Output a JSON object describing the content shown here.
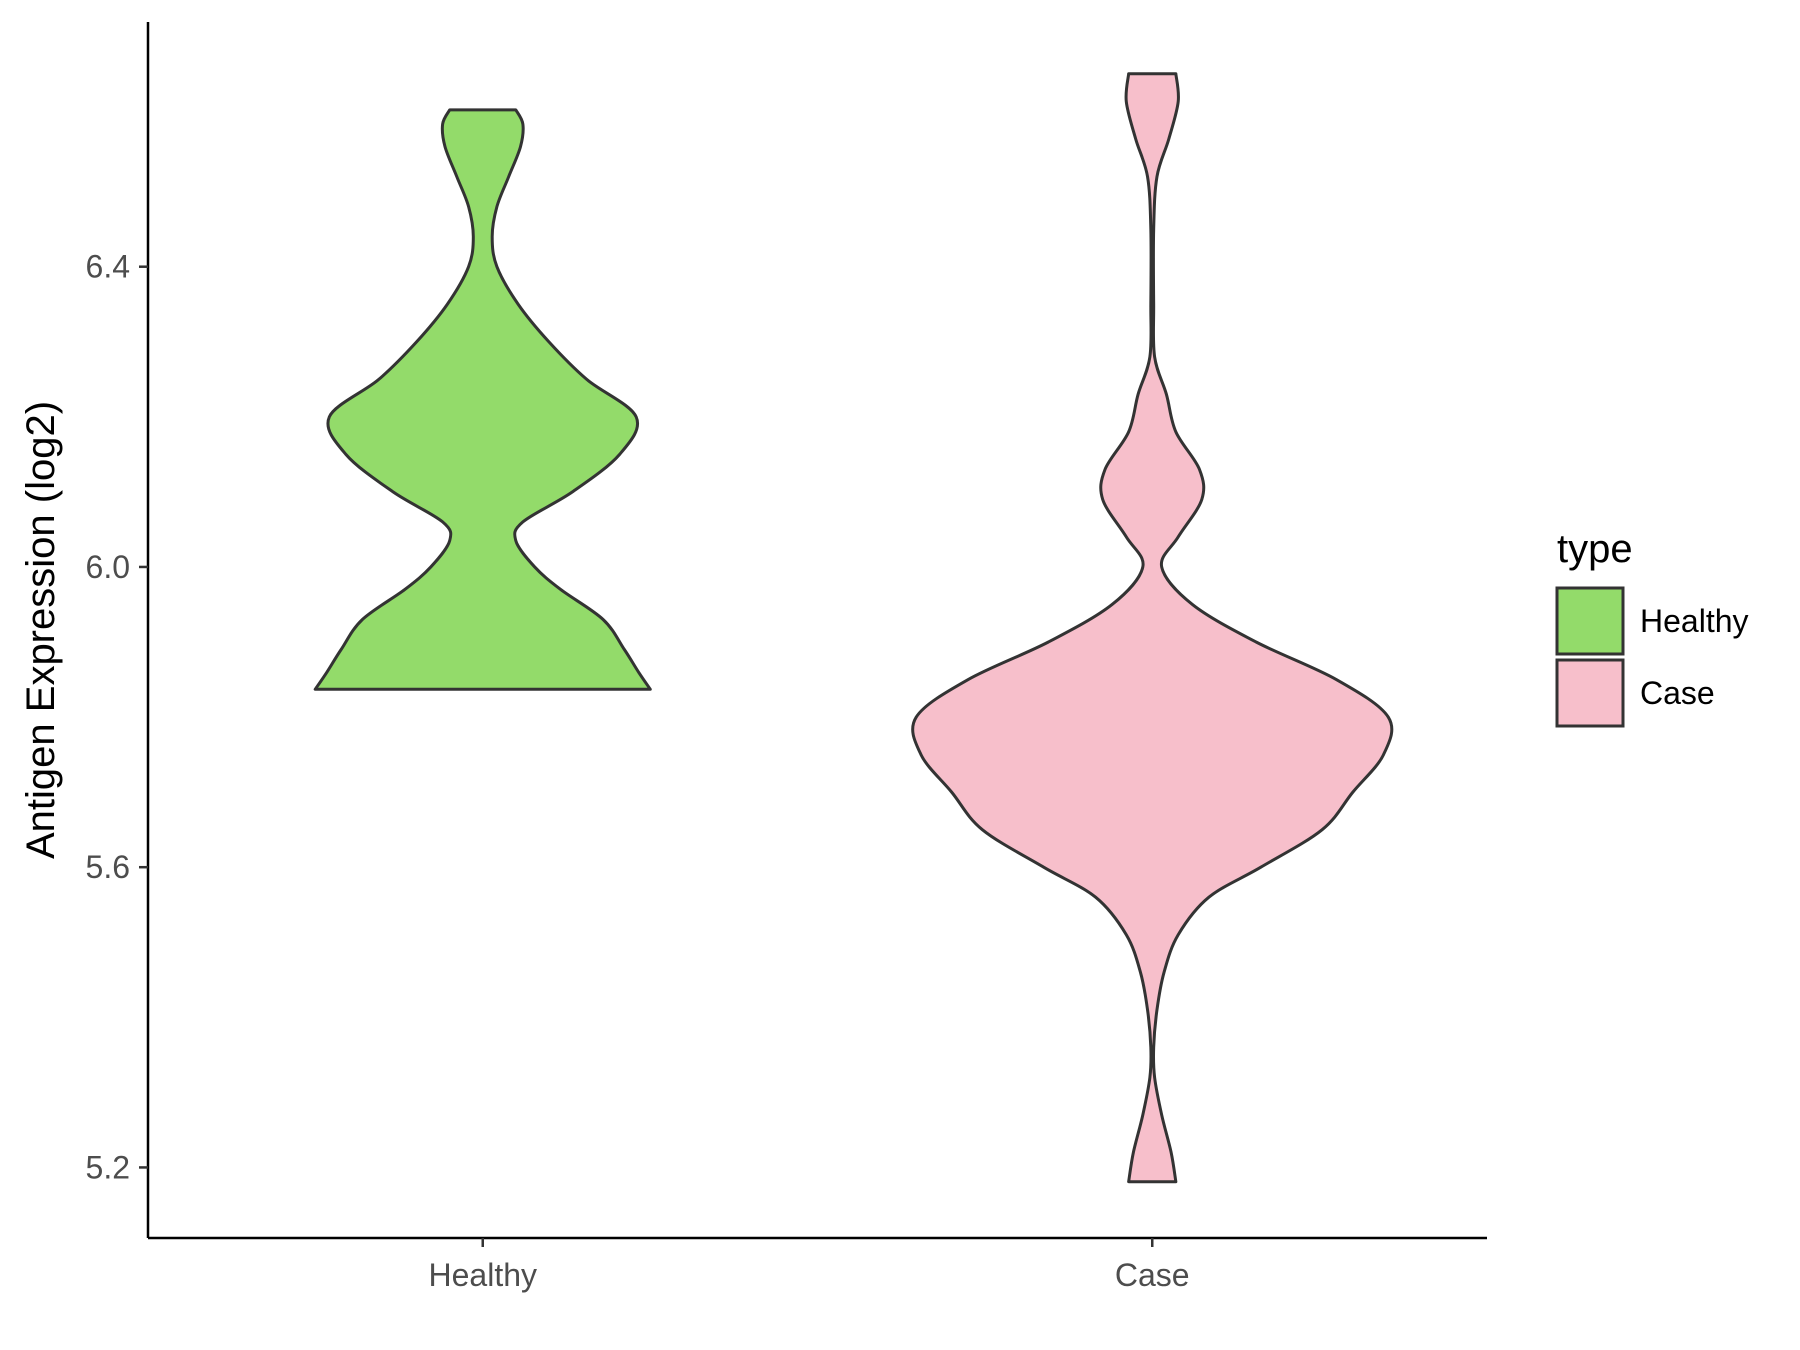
{
  "chart_data": {
    "type": "violin",
    "xlabel": "",
    "ylabel": "Antigen Expression (log2)",
    "ylim": [
      5.106,
      6.726
    ],
    "yticks": [
      "5.2",
      "5.6",
      "6.0",
      "6.4"
    ],
    "categories": [
      "Healthy",
      "Case"
    ],
    "legend": {
      "title": "type",
      "position": "right",
      "items": [
        "Healthy",
        "Case"
      ]
    },
    "series": [
      {
        "name": "Healthy",
        "color": "#93DB6A",
        "min": 5.837,
        "max": 6.609,
        "density": [
          [
            5.837,
            0.71
          ],
          [
            5.86,
            0.66
          ],
          [
            5.89,
            0.6
          ],
          [
            5.93,
            0.51
          ],
          [
            5.97,
            0.33
          ],
          [
            6.0,
            0.22
          ],
          [
            6.035,
            0.14
          ],
          [
            6.06,
            0.17
          ],
          [
            6.1,
            0.38
          ],
          [
            6.15,
            0.58
          ],
          [
            6.2,
            0.65
          ],
          [
            6.25,
            0.44
          ],
          [
            6.3,
            0.28
          ],
          [
            6.35,
            0.15
          ],
          [
            6.4,
            0.06
          ],
          [
            6.44,
            0.04
          ],
          [
            6.48,
            0.06
          ],
          [
            6.52,
            0.11
          ],
          [
            6.56,
            0.16
          ],
          [
            6.59,
            0.17
          ],
          [
            6.609,
            0.14
          ]
        ]
      },
      {
        "name": "Case",
        "color": "#F7BFCB",
        "min": 5.181,
        "max": 6.657,
        "density": [
          [
            5.181,
            0.1
          ],
          [
            5.22,
            0.08
          ],
          [
            5.27,
            0.04
          ],
          [
            5.32,
            0.01
          ],
          [
            5.36,
            0.006
          ],
          [
            5.41,
            0.02
          ],
          [
            5.46,
            0.05
          ],
          [
            5.51,
            0.11
          ],
          [
            5.56,
            0.24
          ],
          [
            5.6,
            0.46
          ],
          [
            5.65,
            0.72
          ],
          [
            5.7,
            0.85
          ],
          [
            5.75,
            0.98
          ],
          [
            5.8,
            1.0
          ],
          [
            5.85,
            0.78
          ],
          [
            5.9,
            0.44
          ],
          [
            5.95,
            0.17
          ],
          [
            6.0,
            0.04
          ],
          [
            6.04,
            0.11
          ],
          [
            6.09,
            0.21
          ],
          [
            6.13,
            0.2
          ],
          [
            6.18,
            0.1
          ],
          [
            6.23,
            0.06
          ],
          [
            6.28,
            0.01
          ],
          [
            6.35,
            0.006
          ],
          [
            6.45,
            0.006
          ],
          [
            6.52,
            0.02
          ],
          [
            6.57,
            0.07
          ],
          [
            6.62,
            0.11
          ],
          [
            6.657,
            0.1
          ]
        ]
      }
    ]
  }
}
